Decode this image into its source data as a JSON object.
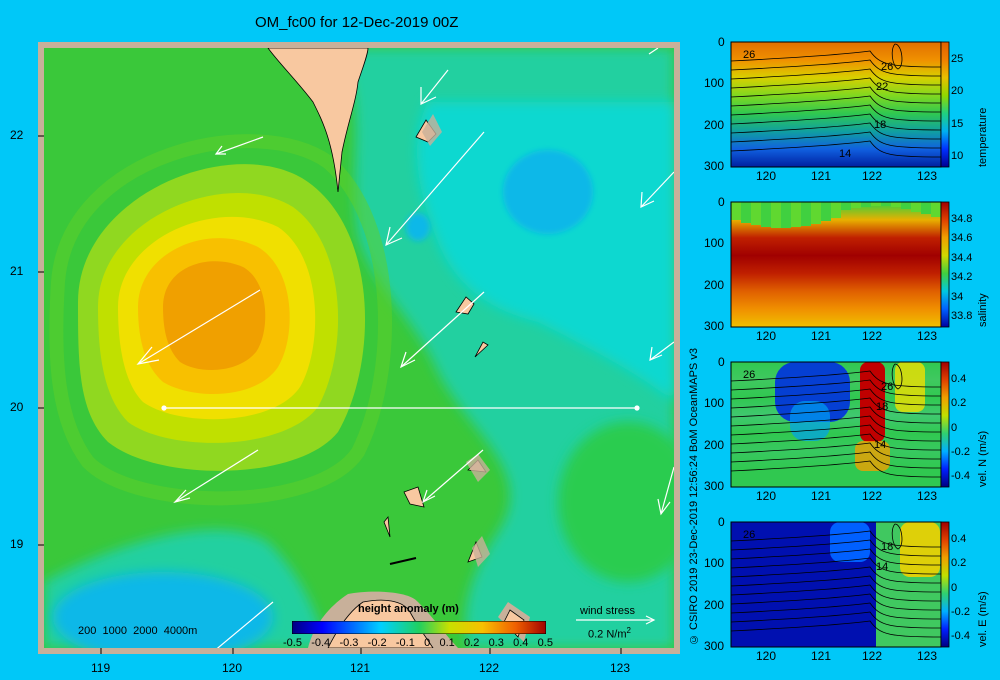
{
  "title": "OM_fc00 for 12-Dec-2019 00Z",
  "credit": "© CSIRO 2019   23-Dec-2019 12:56:24 BoM OceanMAPS v3",
  "colors": {
    "background": "#00c8f8",
    "frame": "#c8b09a",
    "land": "#f8c8a0"
  },
  "map": {
    "type": "heatmap",
    "x_ticks": [
      "119",
      "120",
      "121",
      "122",
      "123"
    ],
    "y_ticks": [
      "22",
      "21",
      "20",
      "19"
    ],
    "xlim": [
      118.6,
      123.5
    ],
    "ylim": [
      18.3,
      22.7
    ],
    "depth_legend": [
      "200",
      "1000",
      "2000",
      "4000m"
    ],
    "colorbar_label": "height anomaly  (m)",
    "colorbar_ticks": [
      "-0.5",
      "-0.4",
      "-0.3",
      "-0.2",
      "-0.1",
      "0",
      "0.1",
      "0.2",
      "0.3",
      "0.4",
      "0.5"
    ],
    "wind_label": "wind stress",
    "wind_scale": "0.2 N/m",
    "wind_scale_exp": "2",
    "transect": {
      "lon": [
        119.5,
        123.0
      ],
      "lat": 20.0
    }
  },
  "chart_data": [
    {
      "type": "heatmap",
      "title": "height anomaly (m)",
      "xlim": [
        118.6,
        123.5
      ],
      "ylim": [
        18.3,
        22.7
      ],
      "features": [
        {
          "name": "eddy max",
          "lon": 119.9,
          "lat": 20.8,
          "value": 0.3
        },
        {
          "name": "low east",
          "lon": 122.6,
          "lat": 21.5,
          "value": -0.05
        },
        {
          "name": "low southwest",
          "lon": 119.5,
          "lat": 18.5,
          "value": -0.15
        }
      ]
    },
    {
      "type": "heatmap",
      "label": "temperature",
      "x_ticks": [
        "120",
        "121",
        "122",
        "123"
      ],
      "y_ticks": [
        "0",
        "100",
        "200",
        "300"
      ],
      "cb_ticks": [
        "25",
        "20",
        "15",
        "10"
      ],
      "contour_labels": [
        "26",
        "26",
        "22",
        "18",
        "14"
      ]
    },
    {
      "type": "heatmap",
      "label": "salinity",
      "x_ticks": [
        "120",
        "121",
        "122",
        "123"
      ],
      "y_ticks": [
        "0",
        "100",
        "200",
        "300"
      ],
      "cb_ticks": [
        "34.8",
        "34.6",
        "34.4",
        "34.2",
        "34",
        "33.8"
      ]
    },
    {
      "type": "heatmap",
      "label": "vel. N (m/s)",
      "x_ticks": [
        "120",
        "121",
        "122",
        "123"
      ],
      "y_ticks": [
        "0",
        "100",
        "200",
        "300"
      ],
      "cb_ticks": [
        "0.4",
        "0.2",
        "0",
        "-0.2",
        "-0.4"
      ],
      "contour_labels": [
        "26",
        "26",
        "18",
        "14"
      ]
    },
    {
      "type": "heatmap",
      "label": "vel. E (m/s)",
      "x_ticks": [
        "120",
        "121",
        "122",
        "123"
      ],
      "y_ticks": [
        "0",
        "100",
        "200",
        "300"
      ],
      "cb_ticks": [
        "0.4",
        "0.2",
        "0",
        "-0.2",
        "-0.4"
      ],
      "contour_labels": [
        "26",
        "18",
        "14"
      ]
    }
  ]
}
